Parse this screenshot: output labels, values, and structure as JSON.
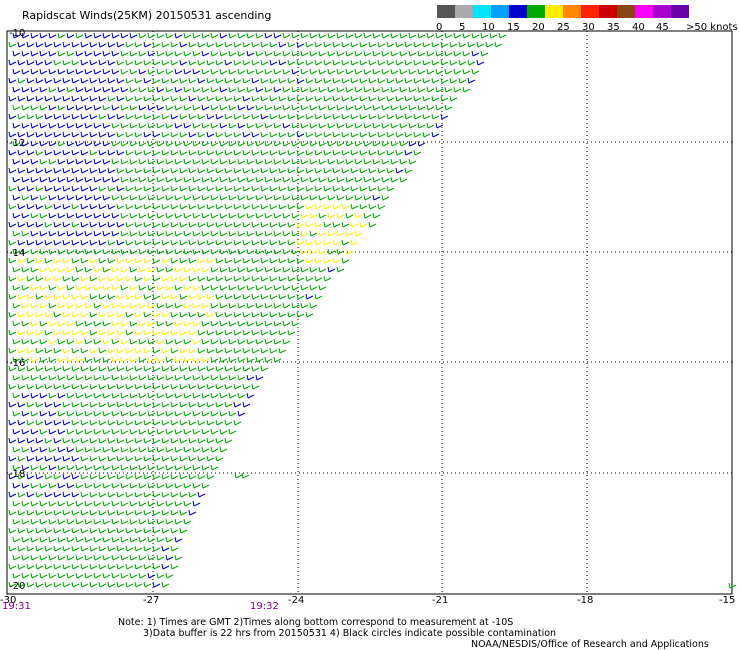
{
  "title": "Rapidscat Winds(25KM) 20150531 ascending",
  "scale": {
    "labels": [
      "0",
      "5",
      "10",
      "15",
      "20",
      "25",
      "30",
      "35",
      "40",
      "45",
      ">50 knots"
    ],
    "colors": [
      "#555555",
      "#aaaaaa",
      "#00e5ff",
      "#00a0ff",
      "#0000cc",
      "#00aa00",
      "#ffee00",
      "#ff8800",
      "#ff2200",
      "#cc0000",
      "#8b4513",
      "#ff00ff",
      "#aa00cc",
      "#6a00aa"
    ]
  },
  "axes": {
    "lat_labels": [
      "-10",
      "-12",
      "-14",
      "-16",
      "-18",
      "-20"
    ],
    "lon_labels": [
      "-30",
      "-27",
      "-24",
      "-21",
      "-18",
      "-15"
    ],
    "times": [
      "19:31",
      "19:32"
    ]
  },
  "notes": {
    "line1": "Note: 1) Times are GMT 2)Times along bottom correspond to measurement at -10S",
    "line2": "3)Data buffer is 22 hrs from 20150531 4) Black circles indicate possible contamination"
  },
  "credit": "NOAA/NESDIS/Office of Research and Applications",
  "colors": {
    "blue_barb": "#0000cc",
    "green_barb": "#00aa00",
    "yellow_barb": "#ffee00",
    "grid": "#000000",
    "time_label": "#800080"
  }
}
